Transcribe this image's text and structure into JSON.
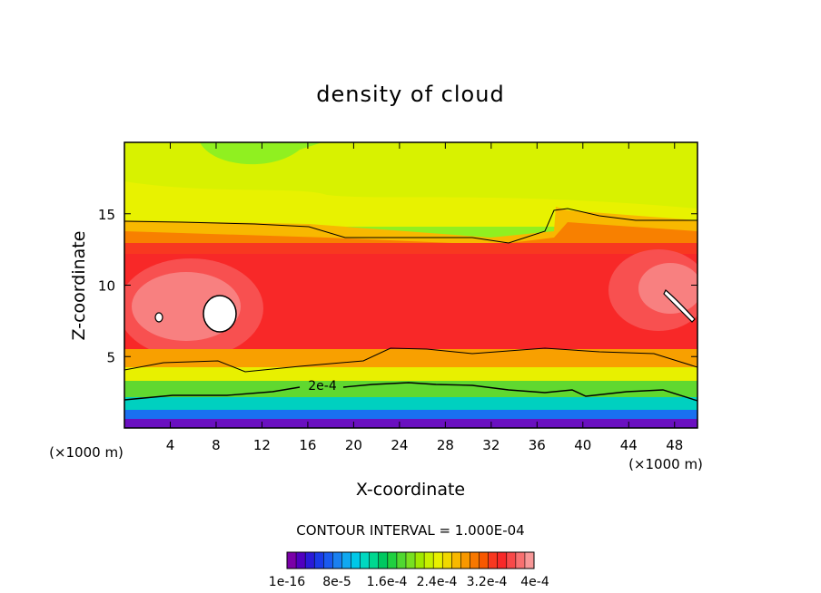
{
  "chart_data": {
    "type": "contour",
    "title": "density of cloud",
    "xlabel": "X-coordinate",
    "ylabel": "Z-coordinate",
    "x_unit": "(×1000 m)",
    "z_unit": "(×1000 m)",
    "xlim": [
      0,
      50
    ],
    "ylim": [
      0,
      20
    ],
    "x_ticks": [
      4,
      8,
      12,
      16,
      20,
      24,
      28,
      32,
      36,
      40,
      44,
      48
    ],
    "y_ticks": [
      5,
      10,
      15
    ],
    "contour_interval_text": "CONTOUR INTERVAL = 1.000E-04",
    "contour_label": "2e-4",
    "colorbar_tick_labels": [
      "1e-16",
      "8e-5",
      "1.6e-4",
      "2.4e-4",
      "3.2e-4",
      "4e-4"
    ],
    "colorbar_colors": [
      "#7a00a8",
      "#5000c0",
      "#2a1ad8",
      "#1a3ae8",
      "#1a5af0",
      "#1a80f0",
      "#10a8f0",
      "#00c8e8",
      "#00d8c0",
      "#00d890",
      "#00c860",
      "#20d040",
      "#50d830",
      "#78e020",
      "#a0e800",
      "#c8f000",
      "#e8f000",
      "#f0d800",
      "#f8b800",
      "#f89800",
      "#f87800",
      "#f85800",
      "#f83820",
      "#f82828",
      "#f84848",
      "#f87070",
      "#f89898"
    ]
  }
}
